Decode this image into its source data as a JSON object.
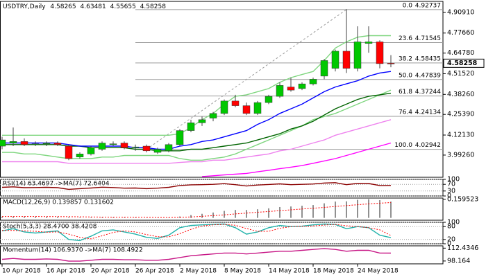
{
  "chart_data": [
    {
      "type": "candlestick",
      "title": "USDTRY,Daily",
      "categories": [
        "10 Apr 2018",
        null,
        null,
        null,
        "16 Apr 2018",
        null,
        null,
        null,
        "20 Apr 2018",
        null,
        null,
        null,
        "26 Apr 2018",
        null,
        null,
        null,
        "2 May 2018",
        null,
        null,
        null,
        "8 May 2018",
        null,
        null,
        null,
        "14 May 2018",
        null,
        null,
        null,
        "18 May 2018",
        null,
        null,
        null,
        "24 May 2018",
        null,
        null,
        null
      ],
      "open": [
        4.05,
        4.07,
        4.08,
        4.06,
        4.065,
        4.07,
        4.05,
        3.98,
        4.0,
        4.03,
        4.06,
        4.07,
        4.04,
        4.05,
        4.01,
        4.02,
        4.06,
        4.15,
        4.2,
        4.23,
        4.26,
        4.34,
        4.31,
        4.26,
        4.33,
        4.37,
        4.43,
        4.42,
        4.45,
        4.5,
        4.55,
        4.66,
        4.55,
        4.71,
        4.72,
        4.58265
      ],
      "high": [
        4.11,
        4.17,
        4.1,
        4.08,
        4.08,
        4.08,
        4.06,
        4.01,
        4.05,
        4.08,
        4.08,
        4.08,
        4.06,
        4.06,
        4.04,
        4.07,
        4.16,
        4.22,
        4.24,
        4.27,
        4.35,
        4.38,
        4.33,
        4.34,
        4.38,
        4.46,
        4.49,
        4.46,
        4.49,
        4.61,
        4.67,
        4.93,
        4.82,
        4.82,
        4.73,
        4.63481
      ],
      "low": [
        4.03,
        4.05,
        4.05,
        4.05,
        4.05,
        4.05,
        3.96,
        3.97,
        3.99,
        4.02,
        4.05,
        4.03,
        4.02,
        4.01,
        4.0,
        4.01,
        4.05,
        4.14,
        4.18,
        4.21,
        4.25,
        4.3,
        4.25,
        4.25,
        4.32,
        4.36,
        4.4,
        4.41,
        4.44,
        4.48,
        4.53,
        4.52,
        4.53,
        4.65,
        4.55,
        4.55655
      ],
      "close": [
        4.09,
        4.08,
        4.06,
        4.065,
        4.07,
        4.06,
        3.97,
        4.0,
        4.04,
        4.07,
        4.065,
        4.04,
        4.045,
        4.02,
        4.03,
        4.06,
        4.15,
        4.2,
        4.22,
        4.26,
        4.34,
        4.31,
        4.26,
        4.33,
        4.37,
        4.44,
        4.41,
        4.45,
        4.48,
        4.6,
        4.66,
        4.55,
        4.72,
        4.72,
        4.58,
        4.58258
      ],
      "up_color": "#00c800",
      "down_color": "#ff0000",
      "series": [
        {
          "color": "#7fd67f",
          "values": [
            4.12,
            4.12,
            4.12,
            4.12,
            4.12,
            4.12,
            4.12,
            4.12,
            4.12,
            4.12,
            4.12,
            4.12,
            4.12,
            4.12,
            4.12,
            4.12,
            4.13,
            4.17,
            4.22,
            4.26,
            4.32,
            4.37,
            4.38,
            4.4,
            4.42,
            4.46,
            4.49,
            4.51,
            4.53,
            4.6,
            4.68,
            4.72,
            4.75,
            4.76,
            4.76,
            4.76
          ]
        },
        {
          "color": "#7fd67f",
          "values": [
            4.01,
            4.01,
            4.0,
            4.0,
            3.99,
            3.98,
            3.97,
            3.97,
            3.97,
            3.98,
            3.98,
            3.99,
            3.99,
            3.99,
            3.99,
            3.99,
            3.97,
            3.96,
            3.96,
            3.97,
            3.98,
            4.0,
            4.03,
            4.06,
            4.09,
            4.12,
            4.15,
            4.18,
            4.22,
            4.24,
            4.26,
            4.29,
            4.32,
            4.35,
            4.38,
            4.41
          ]
        },
        {
          "color": "#ff00ff",
          "values": [
            null,
            null,
            null,
            null,
            null,
            null,
            null,
            null,
            null,
            null,
            null,
            null,
            null,
            null,
            null,
            null,
            null,
            null,
            3.855,
            3.86,
            3.865,
            3.87,
            3.875,
            3.885,
            3.895,
            3.905,
            3.915,
            3.925,
            3.94,
            3.955,
            3.97,
            3.99,
            4.01,
            4.03,
            4.05,
            4.07
          ]
        },
        {
          "color": "#ee82ee",
          "values": [
            3.95,
            3.95,
            3.95,
            3.95,
            3.95,
            3.95,
            3.94,
            3.94,
            3.94,
            3.94,
            3.94,
            3.94,
            3.94,
            3.94,
            3.94,
            3.94,
            3.945,
            3.95,
            3.95,
            3.96,
            3.96,
            3.97,
            3.98,
            3.99,
            4.0,
            4.02,
            4.03,
            4.05,
            4.07,
            4.09,
            4.12,
            4.14,
            4.16,
            4.18,
            4.2,
            4.22
          ]
        },
        {
          "color": "#006400",
          "values": [
            4.06,
            4.06,
            4.06,
            4.06,
            4.06,
            4.06,
            4.05,
            4.05,
            4.04,
            4.04,
            4.04,
            4.04,
            4.03,
            4.03,
            4.02,
            4.02,
            4.02,
            4.03,
            4.03,
            4.04,
            4.05,
            4.06,
            4.07,
            4.09,
            4.11,
            4.13,
            4.16,
            4.18,
            4.21,
            4.25,
            4.29,
            4.32,
            4.35,
            4.37,
            4.38,
            4.39
          ]
        },
        {
          "color": "#0000ff",
          "values": [
            4.07,
            4.07,
            4.07,
            4.07,
            4.07,
            4.07,
            4.06,
            4.05,
            4.05,
            4.05,
            4.05,
            4.05,
            4.04,
            4.04,
            4.03,
            4.03,
            4.05,
            4.06,
            4.08,
            4.09,
            4.11,
            4.13,
            4.15,
            4.19,
            4.22,
            4.26,
            4.29,
            4.32,
            4.36,
            4.4,
            4.43,
            4.45,
            4.47,
            4.5,
            4.52,
            4.53
          ]
        }
      ],
      "fib_levels": [
        {
          "level": "0.0",
          "value": 4.92737
        },
        {
          "level": "23.6",
          "value": 4.71545
        },
        {
          "level": "38.2",
          "value": 4.58435
        },
        {
          "level": "50.0",
          "value": 4.47839
        },
        {
          "level": "61.8",
          "value": 4.37244
        },
        {
          "level": "76.4",
          "value": 4.24134
        },
        {
          "level": "100.0",
          "value": 4.02942
        }
      ],
      "ylim": [
        3.85,
        4.98
      ],
      "yticks": [
        {
          "value": 4.9091,
          "label": "4.90910"
        },
        {
          "value": 4.7766,
          "label": "4.77660"
        },
        {
          "value": 4.6478,
          "label": "4.64780"
        },
        {
          "value": 4.5152,
          "label": "4.51520"
        },
        {
          "value": 4.3826,
          "label": "4.38260"
        },
        {
          "value": 4.2539,
          "label": "4.25390"
        },
        {
          "value": 4.1213,
          "label": "4.12130"
        },
        {
          "value": 3.9926,
          "label": "3.99260"
        }
      ]
    },
    {
      "type": "line",
      "title": "RSI(14) 63.4697 ->MA(7) 72.6404",
      "series": [
        {
          "color": "#8b0000",
          "values": [
            52,
            55,
            50,
            51,
            52,
            50,
            40,
            44,
            48,
            53,
            51,
            47,
            48,
            44,
            47,
            52,
            63,
            67,
            68,
            70,
            74,
            68,
            60,
            66,
            69,
            73,
            68,
            70,
            72,
            78,
            80,
            68,
            76,
            75,
            63,
            63.4697
          ]
        }
      ],
      "ylim": [
        0,
        100
      ],
      "yticks": [
        0,
        30,
        70,
        100
      ],
      "grid": true
    },
    {
      "type": "macd",
      "title": "MACD(12,26,9) 0.139857 0.131602",
      "color": "#909090",
      "values": [
        0.01,
        0.012,
        0.012,
        0.011,
        0.011,
        0.01,
        0.006,
        0.004,
        0.004,
        0.005,
        0.005,
        0.004,
        0.004,
        0.002,
        0.002,
        0.003,
        0.012,
        0.024,
        0.035,
        0.046,
        0.06,
        0.068,
        0.068,
        0.074,
        0.082,
        0.093,
        0.098,
        0.104,
        0.11,
        0.125,
        0.14,
        0.142,
        0.155,
        0.16,
        0.152,
        0.139857
      ],
      "series": [
        {
          "color": "#ff0000",
          "dash": true,
          "values": [
            0.012,
            0.012,
            0.012,
            0.012,
            0.011,
            0.011,
            0.01,
            0.009,
            0.008,
            0.007,
            0.006,
            0.006,
            0.005,
            0.005,
            0.004,
            0.004,
            0.005,
            0.008,
            0.013,
            0.019,
            0.026,
            0.034,
            0.041,
            0.048,
            0.055,
            0.062,
            0.069,
            0.076,
            0.083,
            0.09,
            0.098,
            0.105,
            0.113,
            0.12,
            0.126,
            0.131602
          ]
        }
      ],
      "ylim": [
        -0.02,
        0.17
      ],
      "yticks": [
        0.159523
      ]
    },
    {
      "type": "line",
      "title": "Stoch(5,3,3) 28.4700 38.4208",
      "series": [
        {
          "color": "#20b2aa",
          "values": [
            60,
            70,
            55,
            50,
            55,
            60,
            20,
            15,
            35,
            60,
            65,
            55,
            45,
            30,
            25,
            40,
            75,
            85,
            88,
            90,
            92,
            75,
            45,
            55,
            75,
            85,
            80,
            82,
            88,
            92,
            90,
            70,
            80,
            75,
            40,
            28.47
          ]
        },
        {
          "color": "#ff0000",
          "dash": true,
          "values": [
            62,
            62,
            60,
            58,
            54,
            55,
            45,
            30,
            23,
            37,
            53,
            60,
            55,
            43,
            33,
            32,
            47,
            67,
            83,
            88,
            90,
            86,
            71,
            58,
            58,
            72,
            80,
            82,
            83,
            87,
            90,
            84,
            80,
            75,
            65,
            38.4208
          ]
        }
      ],
      "ylim": [
        0,
        100
      ],
      "yticks": [
        0,
        20,
        80,
        100
      ],
      "grid": true
    },
    {
      "type": "line",
      "title": "Momentum(14) 106.9370 ->MA(7) 108.4922",
      "series": [
        {
          "color": "#c71585",
          "values": [
            100,
            101,
            100,
            100,
            100.5,
            100,
            98,
            98,
            99,
            100,
            100,
            99.5,
            99.5,
            99,
            99,
            100,
            102,
            104,
            105,
            106,
            107,
            107,
            106,
            107,
            108,
            109,
            109,
            110,
            111,
            112,
            111,
            109,
            110,
            110,
            107,
            106.937
          ]
        }
      ],
      "ylim": [
        95,
        115
      ],
      "yticks": [
        98.164,
        112.4346
      ]
    }
  ]
}
